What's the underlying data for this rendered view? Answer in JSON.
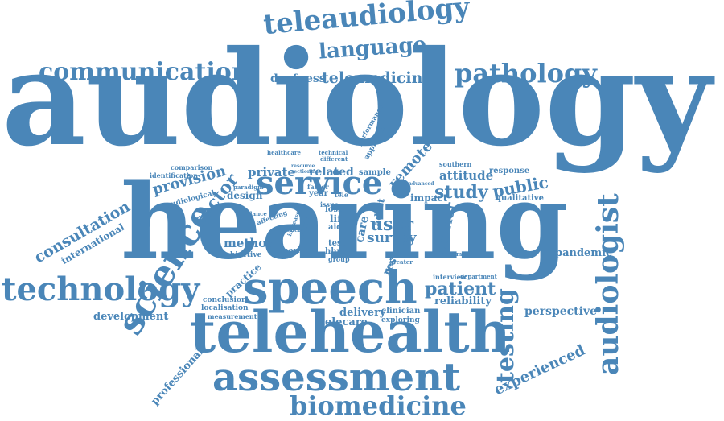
{
  "color": "#4a86b8",
  "words": {
    "audiology": "audiology",
    "hearing": "hearing",
    "speech": "speech",
    "telehealth": "telehealth",
    "assessment": "assessment",
    "technology": "technology",
    "science": "science",
    "service": "service",
    "biomedicine": "biomedicine",
    "audiologist": "audiologist",
    "teleaudiology": "teleaudiology",
    "communication": "communication",
    "pathology": "pathology",
    "language": "language",
    "telemedicine": "telemedicine",
    "deafness": "deafness",
    "consultation": "consultation",
    "international": "international",
    "testing": "testing",
    "patient": "patient",
    "study": "study",
    "public": "public",
    "sector": "sector",
    "provision": "provision",
    "private": "private",
    "related": "related",
    "attitude": "attitude",
    "remote": "remote",
    "user": "user",
    "survey": "survey",
    "barrier": "barrier",
    "pandemic": "pandemic",
    "perspective": "perspective",
    "experienced": "experienced",
    "professional": "professional",
    "development": "development",
    "practice": "practice",
    "method": "method",
    "objective": "objective",
    "reliability": "reliability",
    "delivery": "delivery",
    "telecare": "telecare",
    "clinician": "clinician",
    "exploring": "exploring",
    "conclusion": "conclusion",
    "localisation": "localisation",
    "measurement": "measurement",
    "qualitative": "qualitative",
    "response": "response",
    "southern": "southern",
    "design": "design",
    "year": "year",
    "tele": "tele",
    "audiological": "audiological",
    "identification": "identification",
    "comparison": "comparison",
    "healthcare": "healthcare",
    "technical": "technical",
    "different": "different",
    "performance": "performance",
    "approach": "approach",
    "sample": "sample",
    "impact": "impact",
    "adult": "adult",
    "life": "life",
    "aid": "aid",
    "loss": "loss",
    "care": "care",
    "test": "test",
    "hhps": "hhps",
    "group": "group",
    "result": "result",
    "theme": "theme",
    "profile": "profile",
    "greater": "greater",
    "interview": "interview",
    "department": "department",
    "kingdom": "kingdom",
    "clinical": "clinical",
    "normal": "normal",
    "listener": "listener",
    "affecting": "affecting",
    "guidance": "guidance",
    "factor": "factor",
    "increase": "increase",
    "paradigm": "paradigm",
    "issue": "issue",
    "advanced": "advanced",
    "resource": "resource",
    "sectional": "sectional"
  }
}
